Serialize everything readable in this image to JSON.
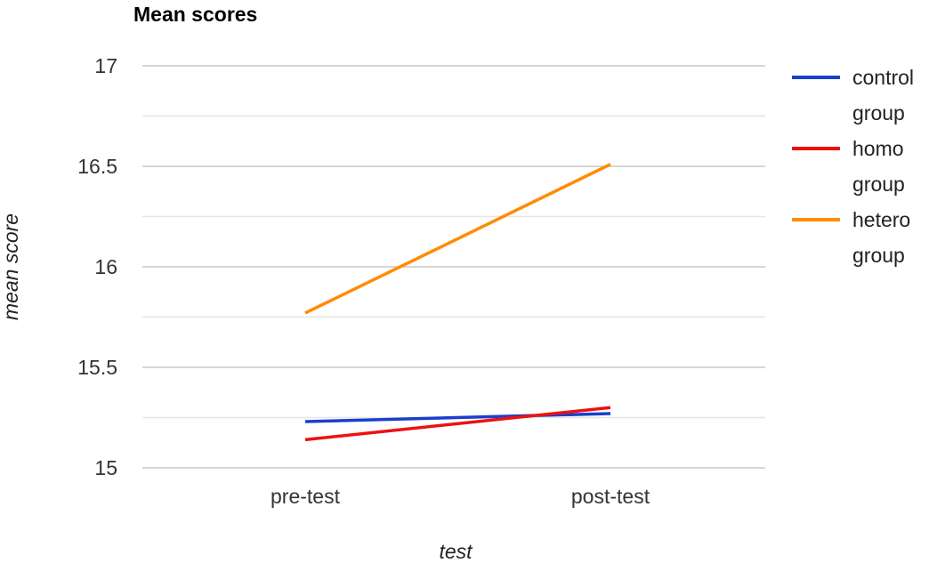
{
  "chart_data": {
    "type": "line",
    "title": "Mean scores",
    "xlabel": "test",
    "ylabel": "mean score",
    "categories": [
      "pre-test",
      "post-test"
    ],
    "ylim": [
      15,
      17
    ],
    "yticks": [
      "15",
      "15.5",
      "16",
      "16.5",
      "17"
    ],
    "grid": true,
    "legend_position": "right",
    "series": [
      {
        "name": "control group",
        "name_lines": [
          "control",
          "group"
        ],
        "color": "#1a3fcc",
        "values": [
          15.23,
          15.27
        ]
      },
      {
        "name": "homo group",
        "name_lines": [
          "homo",
          "group"
        ],
        "color": "#ee1111",
        "values": [
          15.14,
          15.3
        ]
      },
      {
        "name": "hetero group",
        "name_lines": [
          "hetero",
          "group"
        ],
        "color": "#ff8c00",
        "values": [
          15.77,
          16.51
        ]
      }
    ]
  }
}
